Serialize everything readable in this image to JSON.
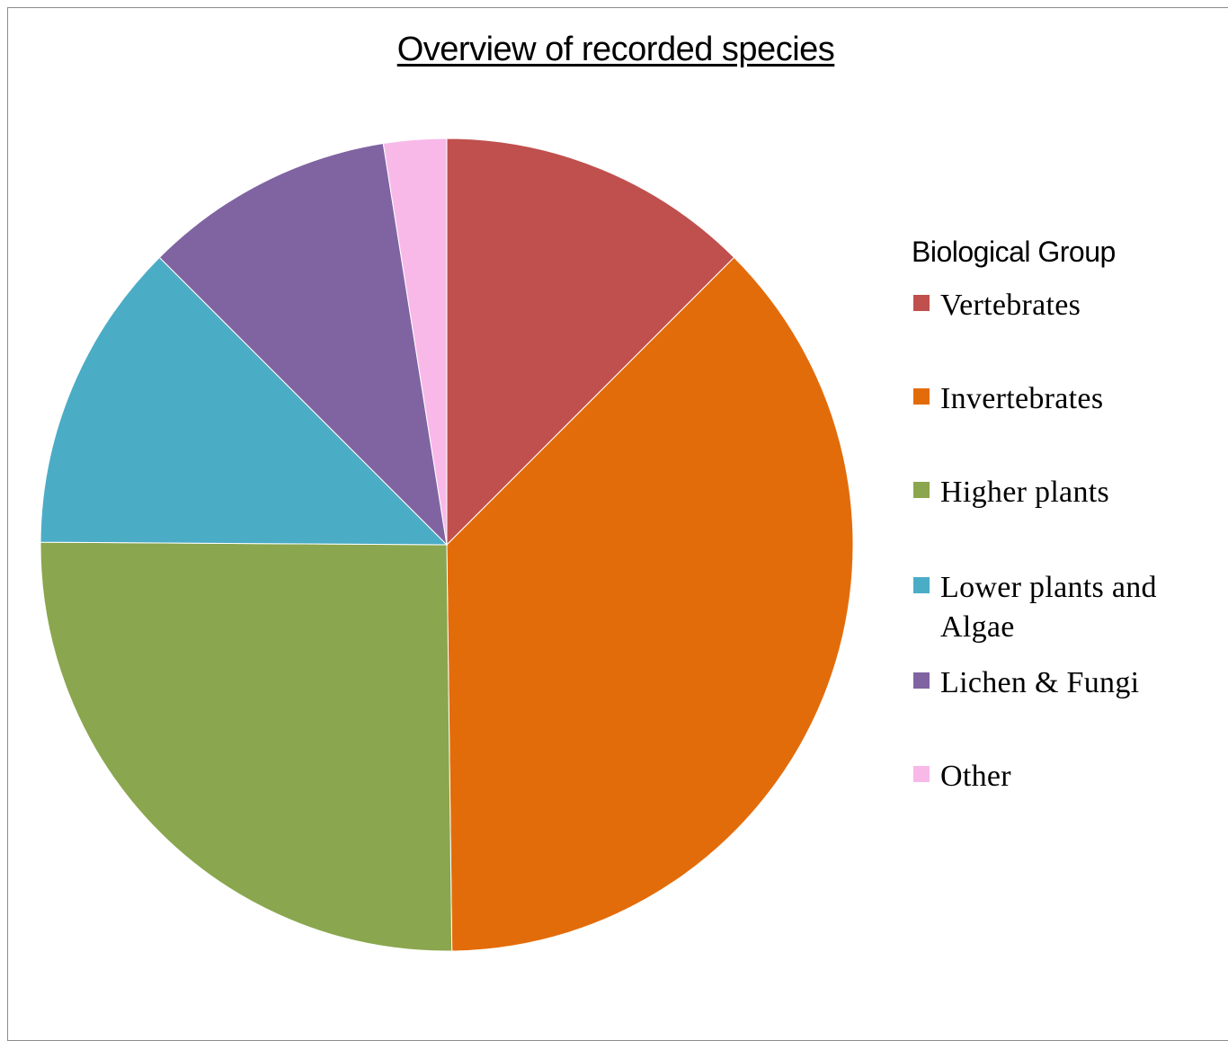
{
  "chart_data": {
    "type": "pie",
    "title": "Overview of recorded species",
    "legend_title": "Biological Group",
    "legend_position": "right",
    "categories": [
      "Vertebrates",
      "Invertebrates",
      "Higher plants",
      "Lower plants and Algae",
      "Lichen & Fungi",
      "Other"
    ],
    "values": [
      12.5,
      37.3,
      25.3,
      12.4,
      10.0,
      2.5
    ],
    "colors": [
      "#c0504d",
      "#e36c0a",
      "#8aa64e",
      "#4bacc6",
      "#8064a2",
      "#f8b9e9"
    ]
  }
}
